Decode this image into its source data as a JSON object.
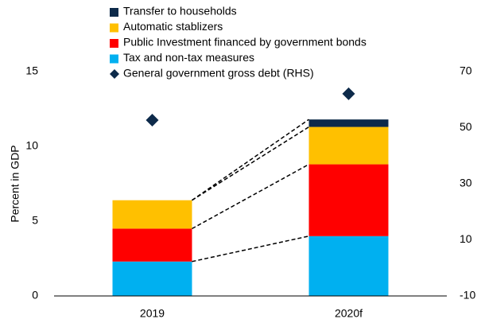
{
  "chart_data": {
    "type": "bar",
    "stacked": true,
    "y_label": "Percent in GDP",
    "categories": [
      "2019",
      "2020f"
    ],
    "series": [
      {
        "name": "Tax and non-tax measures",
        "color": "#00b0f0",
        "values": [
          2.3,
          4.0
        ]
      },
      {
        "name": "Public Investment financed by government bonds",
        "color": "#ff0000",
        "values": [
          2.2,
          4.8
        ]
      },
      {
        "name": "Automatic stablizers",
        "color": "#ffc000",
        "values": [
          1.9,
          2.5
        ]
      },
      {
        "name": "Transfer to households",
        "color": "#0d2a4a",
        "values": [
          0,
          0.5
        ]
      },
      {
        "name": "General government gross debt (RHS)",
        "color": "#0d2a4a",
        "values": [
          52.7,
          62.1
        ],
        "axis": "y2",
        "marker": "diamond"
      }
    ],
    "ylim": [
      0,
      15
    ],
    "yticks": [
      0,
      5,
      10,
      15
    ],
    "y2lim": [
      -10,
      70
    ],
    "y2ticks": [
      -10,
      10,
      30,
      50,
      70
    ],
    "connectors": true
  }
}
